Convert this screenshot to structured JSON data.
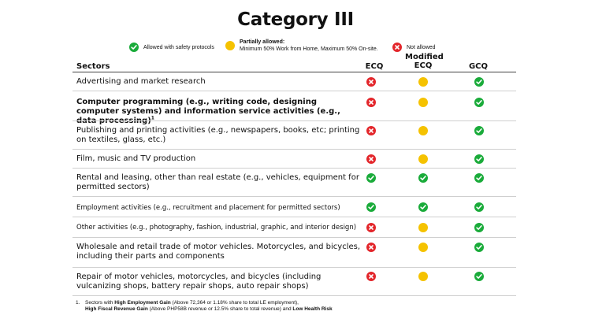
{
  "title": "Category III",
  "legend": {
    "allowed": "Allowed with safety protocols",
    "partial_title": "Partially allowed:",
    "partial_desc": "Minimum 50% Work from Home,  Maximum 50% On-site.",
    "not_allowed": "Not allowed"
  },
  "columns": {
    "sectors": "Sectors",
    "ecq": "ECQ",
    "mecq": "Modified ECQ",
    "gcq": "GCQ"
  },
  "colors": {
    "allowed": "#1aab3a",
    "partial": "#f5c200",
    "not_allowed": "#e3262b"
  },
  "rows": [
    {
      "label": "Advertising and market research",
      "ecq": "not_allowed",
      "mecq": "partial",
      "gcq": "allowed"
    },
    {
      "label": "Computer programming (e.g., writing code, designing computer systems)  and information service activities (e.g., data processing)",
      "sup": "1",
      "ecq": "not_allowed",
      "mecq": "partial",
      "gcq": "allowed"
    },
    {
      "label": "Publishing and printing activities (e.g., newspapers, books, etc; printing on textiles, glass, etc.)",
      "ecq": "not_allowed",
      "mecq": "partial",
      "gcq": "allowed"
    },
    {
      "label": "Film, music and TV production",
      "ecq": "not_allowed",
      "mecq": "partial",
      "gcq": "allowed"
    },
    {
      "label": "Rental and leasing, other than real estate (e.g., vehicles, equipment for permitted sectors)",
      "ecq": "allowed",
      "mecq": "allowed",
      "gcq": "allowed"
    },
    {
      "label": "Employment activities (e.g., recruitment and placement for permitted sectors)",
      "ecq": "allowed",
      "mecq": "allowed",
      "gcq": "allowed"
    },
    {
      "label": "Other activities (e.g., photography, fashion, industrial, graphic, and interior design)",
      "ecq": "not_allowed",
      "mecq": "partial",
      "gcq": "allowed"
    },
    {
      "label": "Wholesale and retail trade of motor vehicles. Motorcycles, and bicycles, including their parts and components",
      "ecq": "not_allowed",
      "mecq": "partial",
      "gcq": "allowed"
    },
    {
      "label": "Repair of motor vehicles, motorcycles, and bicycles (including vulcanizing shops, battery repair shops, auto repair shops)",
      "ecq": "not_allowed",
      "mecq": "partial",
      "gcq": "allowed"
    }
  ],
  "footnote": {
    "number": "1.",
    "p1": "Sectors with ",
    "b1": "High Employment Gain",
    "p2": " (Above 72,364 or 1.18% share to total LE employment),",
    "b2": "High Fiscal Revenue Gain",
    "p3": " (Above PHP58B revenue or 12.5% share to total revenue) and  ",
    "b3": "Low Health Risk"
  }
}
